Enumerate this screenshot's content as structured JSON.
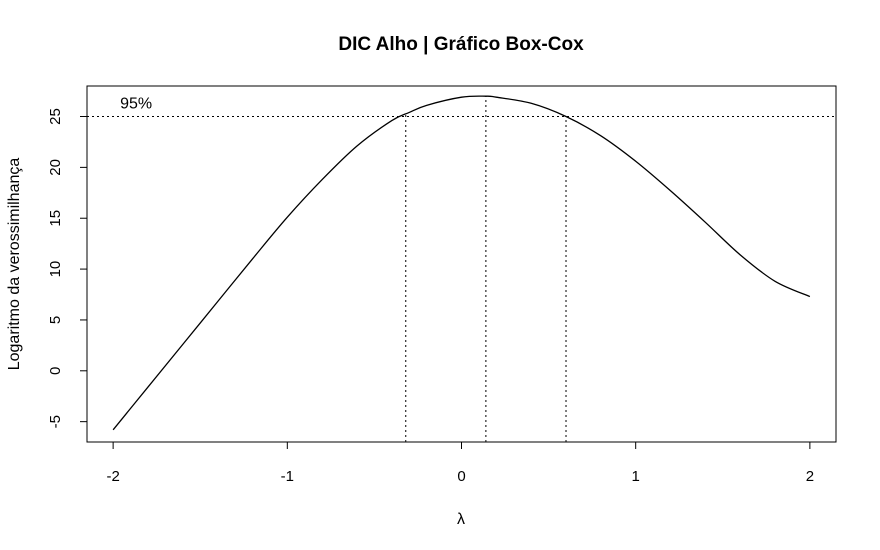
{
  "chart_data": {
    "type": "line",
    "title": "DIC Alho | Gráfico Box-Cox",
    "xlabel": "λ",
    "ylabel": "Logaritmo da verossimilhança",
    "xlim": [
      -2.15,
      2.15
    ],
    "ylim": [
      -7,
      28
    ],
    "x_ticks": [
      -2,
      -1,
      0,
      1,
      2
    ],
    "x_tick_labels": [
      "-2",
      "-1",
      "0",
      "1",
      "2"
    ],
    "y_ticks": [
      -5,
      0,
      5,
      10,
      15,
      20,
      25
    ],
    "y_tick_labels": [
      "-5",
      "0",
      "5",
      "10",
      "15",
      "20",
      "25"
    ],
    "grid": false,
    "series": [
      {
        "x": [
          -2.0,
          -1.8,
          -1.6,
          -1.4,
          -1.2,
          -1.0,
          -0.8,
          -0.6,
          -0.4,
          -0.3,
          -0.2,
          0.0,
          0.14,
          0.2,
          0.4,
          0.6,
          0.8,
          1.0,
          1.2,
          1.4,
          1.6,
          1.8,
          2.0
        ],
        "y": [
          -5.8,
          -1.6,
          2.6,
          6.8,
          11.0,
          15.1,
          18.8,
          22.1,
          24.6,
          25.4,
          26.1,
          26.9,
          27.0,
          26.9,
          26.3,
          25.0,
          23.1,
          20.6,
          17.7,
          14.6,
          11.4,
          8.8,
          7.3
        ]
      }
    ],
    "annotations": [
      {
        "text": "95%",
        "x": -1.96,
        "y": 26.2
      }
    ],
    "reference_lines": {
      "ci_threshold_y": 25.0,
      "lambda_lower": -0.32,
      "lambda_hat": 0.14,
      "lambda_upper": 0.6
    }
  }
}
